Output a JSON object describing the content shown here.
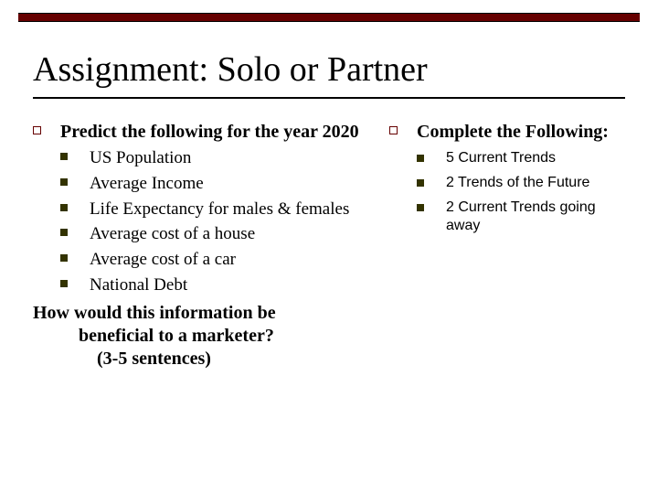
{
  "colors": {
    "accent": "#660000",
    "square_bullet": "#333300",
    "text": "#000000",
    "background": "#ffffff"
  },
  "title": "Assignment:  Solo or Partner",
  "left": {
    "heading": "Predict the following for the year 2020",
    "items": [
      "US Population",
      "Average Income",
      "Life Expectancy for males & females",
      "Average cost of a house",
      "Average cost of a car",
      "National Debt"
    ],
    "closing_line1": "How would this information be",
    "closing_line2": "beneficial to a marketer?",
    "closing_line3": "(3-5 sentences)"
  },
  "right": {
    "heading": "Complete the Following:",
    "items": [
      "5 Current Trends",
      "2 Trends of the Future",
      "2 Current Trends going away"
    ]
  }
}
